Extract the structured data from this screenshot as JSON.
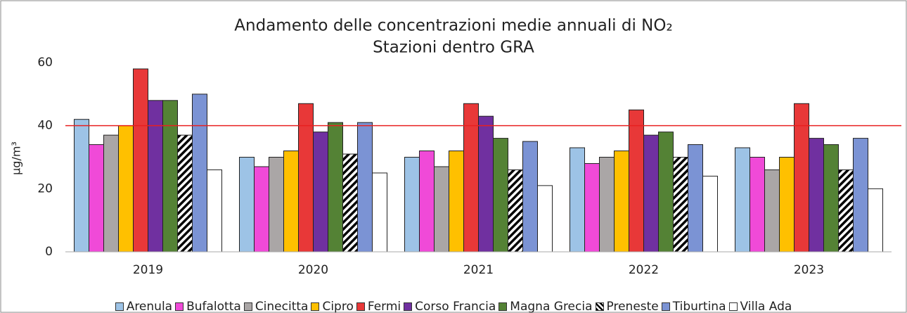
{
  "chart_data": {
    "type": "bar",
    "title": "Andamento delle concentrazioni medie annuali di NO₂",
    "subtitle": "Stazioni dentro GRA",
    "y_label": "µg/m³",
    "categories": [
      "2019",
      "2020",
      "2021",
      "2022",
      "2023"
    ],
    "series": [
      {
        "name": "Arenula",
        "color": "#9dc3e6",
        "values": [
          42,
          30,
          30,
          33,
          33
        ]
      },
      {
        "name": "Bufalotta",
        "color": "#f04ad8",
        "values": [
          34,
          27,
          32,
          28,
          30
        ]
      },
      {
        "name": "Cinecitta",
        "color": "#aaa6a6",
        "values": [
          37,
          30,
          27,
          30,
          26
        ]
      },
      {
        "name": "Cipro",
        "color": "#ffc000",
        "values": [
          40,
          32,
          32,
          32,
          30
        ]
      },
      {
        "name": "Fermi",
        "color": "#e83838",
        "values": [
          58,
          47,
          47,
          45,
          47
        ]
      },
      {
        "name": "Corso Francia",
        "color": "#7030a0",
        "values": [
          48,
          38,
          43,
          37,
          36
        ]
      },
      {
        "name": "Magna Grecia",
        "color": "#548235",
        "values": [
          48,
          41,
          36,
          38,
          34
        ]
      },
      {
        "name": "Preneste",
        "color": "#000000",
        "hatch": true,
        "values": [
          37,
          31,
          26,
          30,
          26
        ]
      },
      {
        "name": "Tiburtina",
        "color": "#7b93d4",
        "values": [
          50,
          41,
          35,
          34,
          36
        ]
      },
      {
        "name": "Villa Ada",
        "color": "#ffffff",
        "values": [
          26,
          25,
          21,
          24,
          20
        ]
      }
    ],
    "ylim": [
      0,
      60
    ],
    "yticks": [
      0,
      20,
      40,
      60
    ],
    "grid": false,
    "reference_line": {
      "value": 40,
      "color": "#e82020"
    },
    "legend": "bottom"
  }
}
